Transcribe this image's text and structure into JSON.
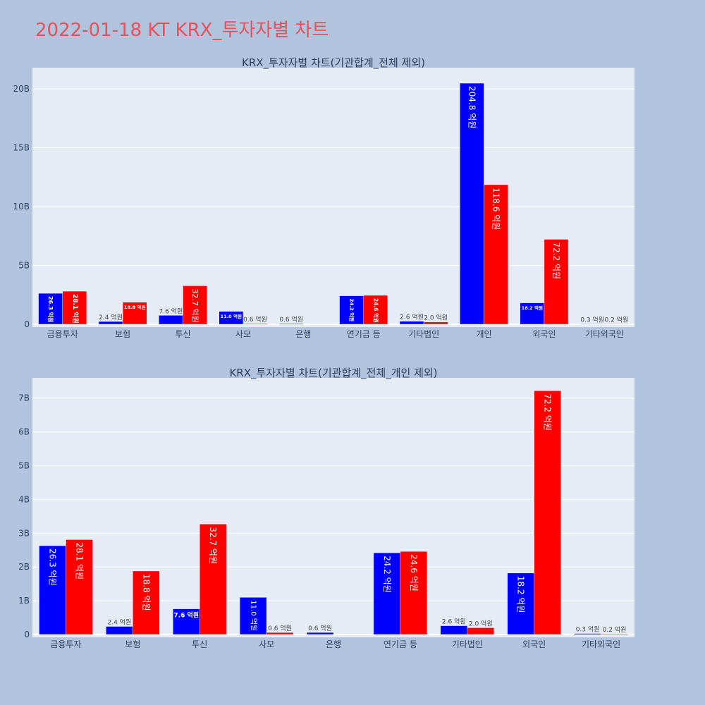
{
  "page": {
    "title": "2022-01-18 KT KRX_투자자별 차트",
    "background": "#b0c4de",
    "title_color": "#e8505b"
  },
  "chart_data": [
    {
      "type": "bar",
      "title": "KRX_투자자별 차트(기관합계_전체 제외)",
      "categories": [
        "금융투자",
        "보험",
        "투신",
        "사모",
        "은행",
        "연기금 등",
        "기타법인",
        "개인",
        "외국인",
        "기타외국인"
      ],
      "yticks": [
        0,
        5000000000,
        10000000000,
        15000000000,
        20000000000
      ],
      "ytick_labels": [
        "0",
        "5B",
        "10B",
        "15B",
        "20B"
      ],
      "ylim": [
        0,
        21800000000
      ],
      "grid": true,
      "legend": "none",
      "series": [
        {
          "color": "#0000ff",
          "values": [
            2630000000,
            240000000,
            760000000,
            1100000000,
            60000000,
            2420000000,
            260000000,
            20480000000,
            1820000000,
            30000000
          ],
          "labels": [
            "26.3 억원",
            "2.4 억원",
            "7.6 억원",
            "11.0 억원",
            "0.6 억원",
            "24.2 억원",
            "2.6 억원",
            "204.8 억원",
            "18.2 억원",
            "0.3 억원"
          ],
          "label_modes": [
            "in-v",
            "out",
            "out",
            "in-h",
            "out",
            "in-v",
            "out",
            "in-v",
            "in-h",
            "out"
          ],
          "label_sizes": [
            8,
            9,
            9,
            6.5,
            9,
            7,
            9,
            12,
            6.5,
            9
          ]
        },
        {
          "color": "#ff0000",
          "values": [
            2810000000,
            1880000000,
            3270000000,
            60000000,
            null,
            2460000000,
            200000000,
            11860000000,
            7220000000,
            20000000
          ],
          "labels": [
            "28.1 억원",
            "18.8 억원",
            "32.7 억원",
            "0.6 억원",
            "",
            "24.6 억원",
            "2.0 억원",
            "118.6 억원",
            "72.2 억원",
            "0.2 억원"
          ],
          "label_modes": [
            "in-v",
            "in-h",
            "in-v",
            "out",
            "none",
            "in-v",
            "out",
            "in-v",
            "in-v",
            "out"
          ],
          "label_sizes": [
            9,
            6.5,
            11,
            9,
            9,
            7.5,
            9,
            12,
            12,
            9
          ]
        }
      ]
    },
    {
      "type": "bar",
      "title": "KRX_투자자별 차트(기관합계_전체_개인 제외)",
      "categories": [
        "금융투자",
        "보험",
        "투신",
        "사모",
        "은행",
        "연기금 등",
        "기타법인",
        "외국인",
        "기타외국인"
      ],
      "yticks": [
        0,
        1000000000,
        2000000000,
        3000000000,
        4000000000,
        5000000000,
        6000000000,
        7000000000
      ],
      "ytick_labels": [
        "0",
        "1B",
        "2B",
        "3B",
        "4B",
        "5B",
        "6B",
        "7B"
      ],
      "ylim": [
        0,
        7600000000
      ],
      "grid": true,
      "legend": "none",
      "series": [
        {
          "color": "#0000ff",
          "values": [
            2630000000,
            240000000,
            760000000,
            1100000000,
            60000000,
            2420000000,
            260000000,
            1820000000,
            30000000
          ],
          "labels": [
            "26.3 억원",
            "2.4 억원",
            "7.6 억원",
            "11.0 억원",
            "0.6 억원",
            "24.2 억원",
            "2.6 억원",
            "18.2 억원",
            "0.3 억원"
          ],
          "label_modes": [
            "in-v",
            "out",
            "in-h",
            "in-v",
            "out",
            "in-v",
            "out",
            "in-v",
            "out"
          ],
          "label_sizes": [
            12,
            9,
            9,
            10,
            9,
            12,
            9,
            12,
            9
          ]
        },
        {
          "color": "#ff0000",
          "values": [
            2810000000,
            1880000000,
            3270000000,
            60000000,
            null,
            2460000000,
            200000000,
            7220000000,
            20000000
          ],
          "labels": [
            "28.1 억원",
            "18.8 억원",
            "32.7 억원",
            "0.6 억원",
            "",
            "24.6 억원",
            "2.0 억원",
            "72.2 억원",
            "0.2 억원"
          ],
          "label_modes": [
            "in-v",
            "in-v",
            "in-v",
            "out",
            "none",
            "in-v",
            "out",
            "in-v",
            "out"
          ],
          "label_sizes": [
            12,
            12,
            12,
            9,
            9,
            12,
            9,
            12,
            9
          ]
        }
      ]
    }
  ]
}
